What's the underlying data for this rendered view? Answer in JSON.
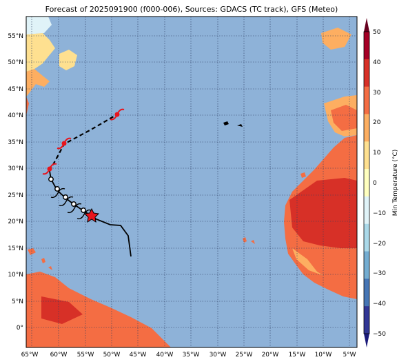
{
  "title": "Forecast of 2025091900 (f000-006), Sources: GDACS (TC track), GFS (Meteo)",
  "colorbar": {
    "label": "Min Temperature (°C)",
    "ticks": [
      "50",
      "40",
      "30",
      "20",
      "10",
      "0",
      "−10",
      "−20",
      "−30",
      "−40",
      "−50"
    ],
    "colors": [
      "#67001f",
      "#a50026",
      "#d73027",
      "#f46d43",
      "#fdae61",
      "#fee090",
      "#ffffbf",
      "#e0f3f8",
      "#abd9e9",
      "#74add1",
      "#4575b4",
      "#313695",
      "#1a1a7a"
    ]
  },
  "axes": {
    "lon_labels": [
      "65°W",
      "60°W",
      "55°W",
      "50°W",
      "45°W",
      "40°W",
      "35°W",
      "30°W",
      "25°W",
      "20°W",
      "15°W",
      "10°W",
      "5°W"
    ],
    "lat_labels": [
      "55°N",
      "50°N",
      "45°N",
      "40°N",
      "35°N",
      "30°N",
      "25°N",
      "20°N",
      "15°N",
      "10°N",
      "5°N",
      "0°"
    ]
  },
  "colors": {
    "ocean": "#8eb2d8",
    "land_warm": "#f46d43",
    "land_hot": "#d73027",
    "land_mild": "#fdae61",
    "land_cool": "#fee090",
    "track_past": "#000000",
    "symbol": "#e8141c"
  }
}
